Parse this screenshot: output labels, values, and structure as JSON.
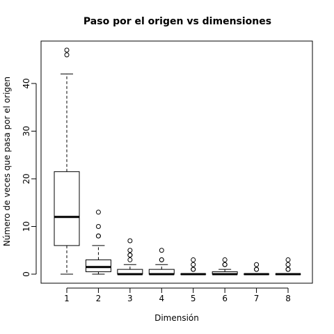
{
  "chart_data": {
    "type": "boxplot",
    "title": "Paso por el origen vs dimensiones",
    "xlabel": "Dimensión",
    "ylabel": "Número de veces que pasa por el origen",
    "categories": [
      "1",
      "2",
      "3",
      "4",
      "5",
      "6",
      "7",
      "8"
    ],
    "yticks": [
      "0",
      "10",
      "20",
      "30",
      "40"
    ],
    "ylim": [
      -1.9,
      48.9
    ],
    "grid": false,
    "boxes": [
      {
        "category": "1",
        "whisker_low": 0,
        "q1": 6,
        "median": 12,
        "q3": 21.5,
        "whisker_high": 42,
        "outliers": [
          46,
          47
        ]
      },
      {
        "category": "2",
        "whisker_low": 0,
        "q1": 0.5,
        "median": 1.5,
        "q3": 3,
        "whisker_high": 6,
        "outliers": [
          8,
          8,
          10,
          13
        ]
      },
      {
        "category": "3",
        "whisker_low": 0,
        "q1": 0,
        "median": 0,
        "q3": 1,
        "whisker_high": 2,
        "outliers": [
          3,
          4,
          4,
          5,
          7
        ]
      },
      {
        "category": "4",
        "whisker_low": 0,
        "q1": 0,
        "median": 0,
        "q3": 1,
        "whisker_high": 2,
        "outliers": [
          3,
          3,
          5
        ]
      },
      {
        "category": "5",
        "whisker_low": 0,
        "q1": 0,
        "median": 0,
        "q3": 0,
        "whisker_high": 0,
        "outliers": [
          1,
          1,
          2,
          3
        ]
      },
      {
        "category": "6",
        "whisker_low": 0,
        "q1": 0,
        "median": 0,
        "q3": 0.5,
        "whisker_high": 1,
        "outliers": [
          2,
          2,
          3
        ]
      },
      {
        "category": "7",
        "whisker_low": 0,
        "q1": 0,
        "median": 0,
        "q3": 0,
        "whisker_high": 0,
        "outliers": [
          1,
          1,
          2
        ]
      },
      {
        "category": "8",
        "whisker_low": 0,
        "q1": 0,
        "median": 0,
        "q3": 0,
        "whisker_high": 0,
        "outliers": [
          1,
          1,
          2,
          3
        ]
      }
    ]
  }
}
